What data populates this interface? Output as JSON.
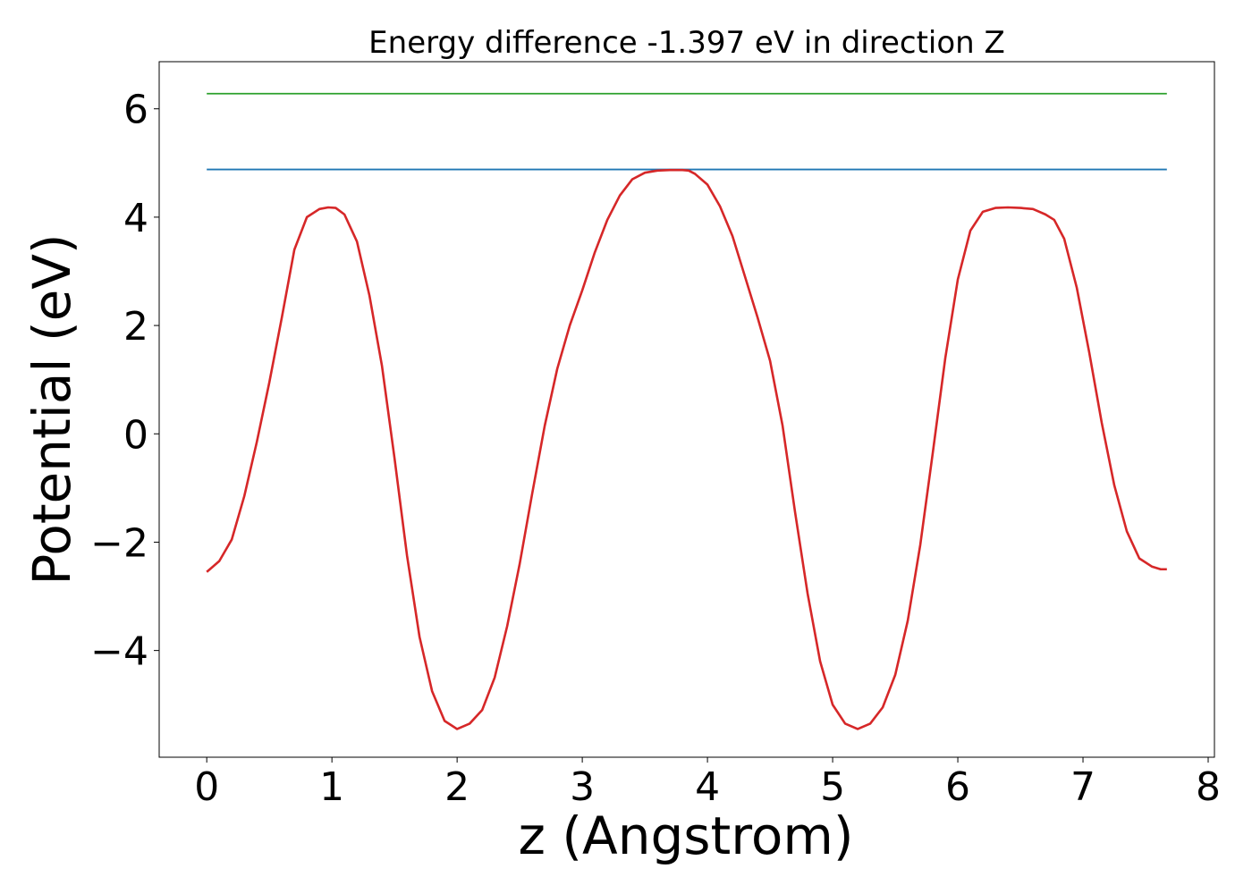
{
  "chart_data": {
    "type": "line",
    "title": "Energy difference -1.397 eV in direction Z",
    "xlabel": "z (Angstrom)",
    "ylabel": "Potential (eV)",
    "xlim": [
      -0.38,
      8.05
    ],
    "ylim": [
      -5.97,
      6.87
    ],
    "xticks": [
      0,
      1,
      2,
      3,
      4,
      5,
      6,
      7,
      8
    ],
    "xtick_labels": [
      "0",
      "1",
      "2",
      "3",
      "4",
      "5",
      "6",
      "7",
      "8"
    ],
    "yticks": [
      -4,
      -2,
      0,
      2,
      4,
      6
    ],
    "ytick_labels": [
      "−4",
      "−2",
      "0",
      "2",
      "4",
      "6"
    ],
    "grid": false,
    "legend": "none",
    "series": [
      {
        "color": "#2ca02c",
        "x": [
          0,
          7.67
        ],
        "y": [
          6.28,
          6.28
        ]
      },
      {
        "color": "#1f77b4",
        "x": [
          0,
          7.67
        ],
        "y": [
          4.88,
          4.88
        ]
      },
      {
        "color": "#d62728",
        "x": [
          0,
          0.1,
          0.2,
          0.3,
          0.4,
          0.5,
          0.6,
          0.7,
          0.8,
          0.9,
          0.97,
          1.03,
          1.1,
          1.2,
          1.3,
          1.4,
          1.5,
          1.6,
          1.7,
          1.8,
          1.9,
          2.0,
          2.1,
          2.2,
          2.3,
          2.4,
          2.5,
          2.6,
          2.7,
          2.8,
          2.9,
          3.0,
          3.1,
          3.2,
          3.3,
          3.4,
          3.5,
          3.6,
          3.7,
          3.8,
          3.85,
          3.9,
          4.0,
          4.1,
          4.2,
          4.3,
          4.4,
          4.5,
          4.6,
          4.7,
          4.8,
          4.9,
          5.0,
          5.1,
          5.2,
          5.3,
          5.4,
          5.5,
          5.6,
          5.7,
          5.8,
          5.9,
          6.0,
          6.1,
          6.2,
          6.3,
          6.4,
          6.5,
          6.6,
          6.65,
          6.7,
          6.77,
          6.85,
          6.95,
          7.05,
          7.15,
          7.25,
          7.35,
          7.45,
          7.55,
          7.62,
          7.67
        ],
        "y": [
          -2.55,
          -2.35,
          -1.95,
          -1.15,
          -0.15,
          0.95,
          2.15,
          3.4,
          4.0,
          4.15,
          4.18,
          4.17,
          4.05,
          3.55,
          2.55,
          1.25,
          -0.45,
          -2.25,
          -3.75,
          -4.75,
          -5.3,
          -5.45,
          -5.35,
          -5.1,
          -4.5,
          -3.55,
          -2.4,
          -1.1,
          0.15,
          1.2,
          2.0,
          2.65,
          3.35,
          3.95,
          4.4,
          4.7,
          4.82,
          4.86,
          4.87,
          4.87,
          4.86,
          4.8,
          4.6,
          4.2,
          3.65,
          2.9,
          2.15,
          1.35,
          0.15,
          -1.45,
          -2.95,
          -4.2,
          -5.0,
          -5.35,
          -5.45,
          -5.35,
          -5.05,
          -4.45,
          -3.45,
          -2.05,
          -0.35,
          1.4,
          2.85,
          3.75,
          4.1,
          4.17,
          4.18,
          4.17,
          4.15,
          4.1,
          4.05,
          3.95,
          3.6,
          2.7,
          1.5,
          0.2,
          -0.95,
          -1.8,
          -2.3,
          -2.45,
          -2.5,
          -2.5
        ]
      }
    ]
  }
}
